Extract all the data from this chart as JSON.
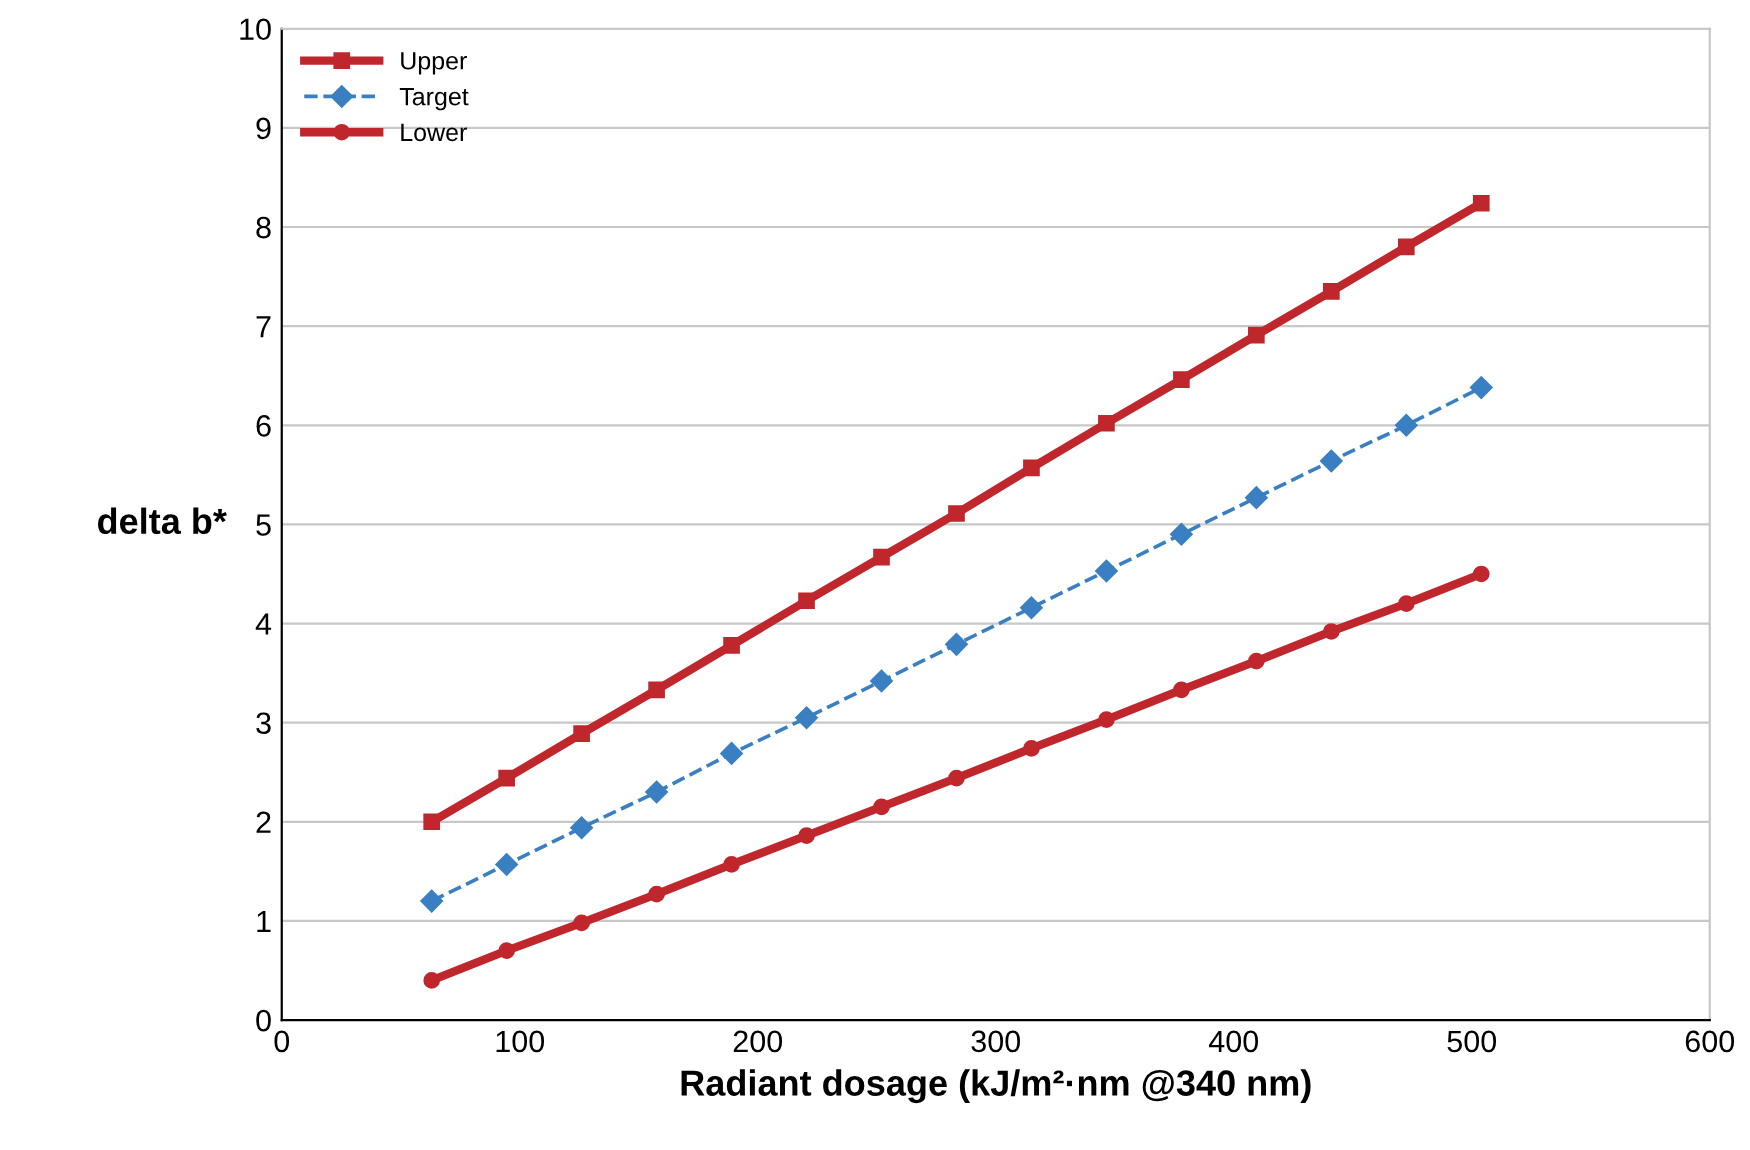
{
  "chart_data": {
    "type": "line",
    "xlabel": "Radiant dosage (kJ/m²·nm @340 nm)",
    "ylabel": "delta b*",
    "x": [
      63,
      94.5,
      126,
      157.5,
      189,
      220.5,
      252,
      283.5,
      315,
      346.5,
      378,
      409.5,
      441,
      472.5,
      504
    ],
    "series": [
      {
        "name": "Upper",
        "color": "#c0272d",
        "marker": "square",
        "line_style": "solid",
        "values": [
          2.0,
          2.44,
          2.89,
          3.33,
          3.78,
          4.23,
          4.67,
          5.11,
          5.57,
          6.02,
          6.46,
          6.91,
          7.35,
          7.8,
          8.24
        ]
      },
      {
        "name": "Target",
        "color": "#3a7fc1",
        "marker": "diamond",
        "line_style": "dashed",
        "values": [
          1.2,
          1.57,
          1.94,
          2.3,
          2.69,
          3.05,
          3.42,
          3.79,
          4.16,
          4.53,
          4.9,
          5.27,
          5.64,
          6.0,
          6.38
        ]
      },
      {
        "name": "Lower",
        "color": "#c0272d",
        "marker": "circle",
        "line_style": "solid",
        "values": [
          0.4,
          0.7,
          0.98,
          1.27,
          1.57,
          1.86,
          2.15,
          2.44,
          2.74,
          3.03,
          3.33,
          3.62,
          3.92,
          4.2,
          4.5
        ]
      }
    ],
    "xlim": [
      0,
      600
    ],
    "xticks": [
      0,
      100,
      200,
      300,
      400,
      500,
      600
    ],
    "ylim": [
      0,
      10
    ],
    "yticks": [
      0,
      1,
      2,
      3,
      4,
      5,
      6,
      7,
      8,
      9,
      10
    ],
    "grid": "y",
    "legend": "top left"
  }
}
